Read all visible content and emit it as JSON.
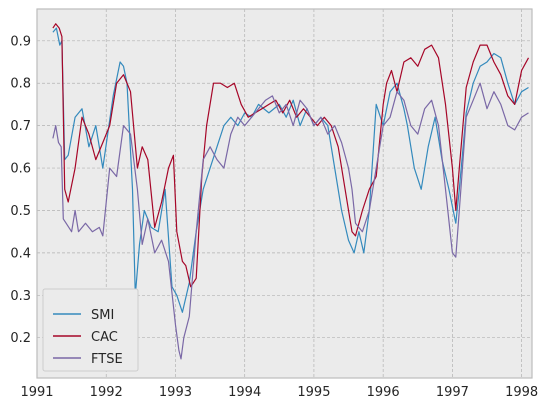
{
  "chart_data": {
    "type": "line",
    "title": "",
    "xlabel": "",
    "ylabel": "",
    "xlim": [
      1991.0,
      1998.15
    ],
    "ylim": [
      0.105,
      0.975
    ],
    "x_ticks": [
      1991,
      1992,
      1993,
      1994,
      1995,
      1996,
      1997,
      1998
    ],
    "x_tick_labels": [
      "1991",
      "1992",
      "1993",
      "1994",
      "1995",
      "1996",
      "1997",
      "1998"
    ],
    "y_ticks": [
      0.2,
      0.3,
      0.4,
      0.5,
      0.6,
      0.7,
      0.8,
      0.9
    ],
    "y_tick_labels": [
      "0.2",
      "0.3",
      "0.4",
      "0.5",
      "0.6",
      "0.7",
      "0.8",
      "0.9"
    ],
    "grid": true,
    "legend_position": "lower-left",
    "background_color": "#ebebeb",
    "series": [
      {
        "name": "SMI",
        "color": "#348abd",
        "x": [
          1991.23,
          1991.28,
          1991.33,
          1991.36,
          1991.4,
          1991.45,
          1991.55,
          1991.65,
          1991.75,
          1991.85,
          1991.95,
          1992.1,
          1992.2,
          1992.25,
          1992.3,
          1992.38,
          1992.42,
          1992.48,
          1992.55,
          1992.65,
          1992.75,
          1992.85,
          1992.95,
          1993.02,
          1993.1,
          1993.2,
          1993.3,
          1993.4,
          1993.5,
          1993.6,
          1993.7,
          1993.8,
          1993.9,
          1994.0,
          1994.1,
          1994.2,
          1994.35,
          1994.5,
          1994.6,
          1994.7,
          1994.8,
          1994.9,
          1995.0,
          1995.1,
          1995.2,
          1995.3,
          1995.4,
          1995.5,
          1995.58,
          1995.65,
          1995.72,
          1995.8,
          1995.9,
          1996.0,
          1996.1,
          1996.2,
          1996.3,
          1996.35,
          1996.45,
          1996.55,
          1996.65,
          1996.75,
          1996.85,
          1996.95,
          1997.05,
          1997.1,
          1997.2,
          1997.3,
          1997.4,
          1997.5,
          1997.6,
          1997.7,
          1997.8,
          1997.9,
          1998.0,
          1998.1
        ],
        "values": [
          0.92,
          0.93,
          0.89,
          0.9,
          0.62,
          0.63,
          0.72,
          0.74,
          0.65,
          0.7,
          0.6,
          0.77,
          0.85,
          0.84,
          0.8,
          0.55,
          0.3,
          0.42,
          0.5,
          0.46,
          0.45,
          0.55,
          0.32,
          0.3,
          0.26,
          0.33,
          0.45,
          0.55,
          0.6,
          0.65,
          0.7,
          0.72,
          0.7,
          0.73,
          0.72,
          0.75,
          0.73,
          0.75,
          0.72,
          0.76,
          0.7,
          0.74,
          0.7,
          0.72,
          0.7,
          0.6,
          0.5,
          0.43,
          0.4,
          0.45,
          0.4,
          0.5,
          0.75,
          0.7,
          0.78,
          0.8,
          0.74,
          0.7,
          0.6,
          0.55,
          0.65,
          0.72,
          0.62,
          0.55,
          0.47,
          0.55,
          0.73,
          0.8,
          0.84,
          0.85,
          0.87,
          0.86,
          0.8,
          0.75,
          0.78,
          0.79
        ]
      },
      {
        "name": "CAC",
        "color": "#a60628",
        "x": [
          1991.23,
          1991.27,
          1991.32,
          1991.36,
          1991.4,
          1991.45,
          1991.55,
          1991.65,
          1991.75,
          1991.85,
          1991.95,
          1992.05,
          1992.15,
          1992.25,
          1992.35,
          1992.45,
          1992.52,
          1992.6,
          1992.7,
          1992.8,
          1992.9,
          1992.97,
          1993.02,
          1993.1,
          1993.15,
          1993.22,
          1993.3,
          1993.38,
          1993.45,
          1993.55,
          1993.65,
          1993.75,
          1993.85,
          1993.95,
          1994.05,
          1994.15,
          1994.25,
          1994.35,
          1994.45,
          1994.55,
          1994.65,
          1994.75,
          1994.85,
          1994.95,
          1995.05,
          1995.15,
          1995.25,
          1995.35,
          1995.45,
          1995.55,
          1995.6,
          1995.7,
          1995.8,
          1995.9,
          1996.0,
          1996.05,
          1996.12,
          1996.2,
          1996.3,
          1996.4,
          1996.5,
          1996.6,
          1996.7,
          1996.8,
          1996.9,
          1997.0,
          1997.05,
          1997.1,
          1997.2,
          1997.3,
          1997.4,
          1997.5,
          1997.6,
          1997.7,
          1997.8,
          1997.9,
          1998.0,
          1998.1
        ],
        "values": [
          0.93,
          0.94,
          0.93,
          0.91,
          0.55,
          0.52,
          0.6,
          0.72,
          0.68,
          0.62,
          0.66,
          0.7,
          0.8,
          0.82,
          0.78,
          0.6,
          0.65,
          0.62,
          0.46,
          0.52,
          0.6,
          0.63,
          0.45,
          0.38,
          0.37,
          0.32,
          0.34,
          0.58,
          0.7,
          0.8,
          0.8,
          0.79,
          0.8,
          0.75,
          0.72,
          0.73,
          0.74,
          0.75,
          0.76,
          0.73,
          0.76,
          0.72,
          0.74,
          0.72,
          0.7,
          0.72,
          0.7,
          0.65,
          0.55,
          0.45,
          0.44,
          0.5,
          0.55,
          0.58,
          0.75,
          0.8,
          0.83,
          0.78,
          0.85,
          0.86,
          0.84,
          0.88,
          0.89,
          0.86,
          0.75,
          0.6,
          0.5,
          0.6,
          0.79,
          0.85,
          0.89,
          0.89,
          0.85,
          0.82,
          0.77,
          0.75,
          0.83,
          0.86
        ]
      },
      {
        "name": "FTSE",
        "color": "#7a68a6",
        "x": [
          1991.23,
          1991.27,
          1991.31,
          1991.35,
          1991.38,
          1991.42,
          1991.5,
          1991.55,
          1991.6,
          1991.7,
          1991.8,
          1991.9,
          1991.95,
          1992.05,
          1992.15,
          1992.25,
          1992.35,
          1992.45,
          1992.52,
          1992.6,
          1992.7,
          1992.8,
          1992.9,
          1993.0,
          1993.05,
          1993.08,
          1993.12,
          1993.2,
          1993.3,
          1993.4,
          1993.5,
          1993.6,
          1993.7,
          1993.8,
          1993.9,
          1994.0,
          1994.1,
          1994.2,
          1994.3,
          1994.4,
          1994.5,
          1994.6,
          1994.7,
          1994.8,
          1994.9,
          1995.0,
          1995.1,
          1995.2,
          1995.3,
          1995.4,
          1995.5,
          1995.55,
          1995.6,
          1995.7,
          1995.8,
          1995.9,
          1996.0,
          1996.1,
          1996.2,
          1996.3,
          1996.4,
          1996.5,
          1996.6,
          1996.7,
          1996.8,
          1996.9,
          1997.0,
          1997.05,
          1997.1,
          1997.2,
          1997.3,
          1997.4,
          1997.5,
          1997.6,
          1997.7,
          1997.8,
          1997.9,
          1998.0,
          1998.1
        ],
        "values": [
          0.67,
          0.7,
          0.66,
          0.65,
          0.48,
          0.47,
          0.45,
          0.5,
          0.45,
          0.47,
          0.45,
          0.46,
          0.44,
          0.6,
          0.58,
          0.7,
          0.68,
          0.55,
          0.42,
          0.48,
          0.4,
          0.43,
          0.38,
          0.23,
          0.17,
          0.15,
          0.2,
          0.25,
          0.45,
          0.62,
          0.65,
          0.62,
          0.6,
          0.68,
          0.72,
          0.7,
          0.72,
          0.74,
          0.76,
          0.77,
          0.73,
          0.75,
          0.7,
          0.76,
          0.74,
          0.7,
          0.72,
          0.68,
          0.7,
          0.66,
          0.6,
          0.55,
          0.47,
          0.45,
          0.5,
          0.6,
          0.7,
          0.72,
          0.78,
          0.76,
          0.7,
          0.68,
          0.74,
          0.76,
          0.7,
          0.55,
          0.4,
          0.39,
          0.5,
          0.72,
          0.76,
          0.8,
          0.74,
          0.78,
          0.75,
          0.7,
          0.69,
          0.72,
          0.73
        ]
      }
    ]
  }
}
